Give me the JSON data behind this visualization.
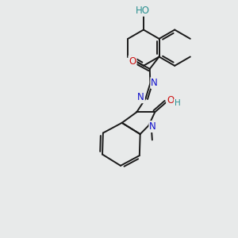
{
  "bg_color": "#e8eaea",
  "bond_color": "#1a1a1a",
  "bond_width": 1.4,
  "atom_colors": {
    "N": "#1010cc",
    "O": "#cc1010",
    "H": "#2a9090"
  },
  "font_size": 8.5
}
